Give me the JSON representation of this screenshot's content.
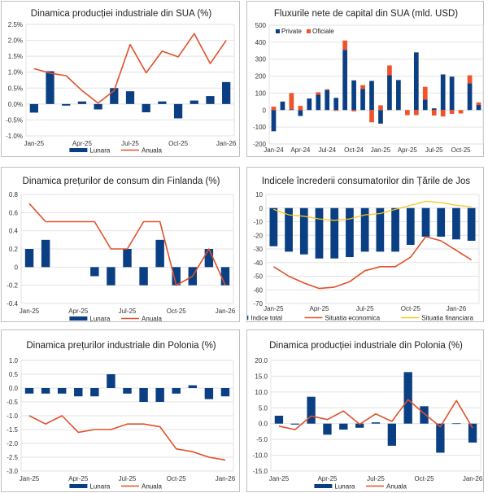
{
  "colors": {
    "blue": "#0b3f84",
    "orange": "#f0532a",
    "red_line": "#e0502b",
    "yellow": "#f5c518",
    "axis_text": "#333333"
  },
  "chart_data": [
    {
      "id": "us-industrial",
      "type": "bar+line",
      "title": "Dinamica producției industriale din SUA (%)",
      "xlabel": "",
      "ylabel": "",
      "ylim": [
        -1.0,
        2.5
      ],
      "yticks": [
        "2.5%",
        "2.0%",
        "1.5%",
        "1.0%",
        "0.5%",
        "0.0%",
        "-0.5%",
        "-1.0%"
      ],
      "ytick_values": [
        2.5,
        2.0,
        1.5,
        1.0,
        0.5,
        0.0,
        -0.5,
        -1.0
      ],
      "categories": [
        "Jan-25",
        "Feb-25",
        "Mar-25",
        "Apr-25",
        "May-25",
        "Jun-25",
        "Jul-25",
        "Aug-25",
        "Sep-25",
        "Oct-25",
        "Nov-25",
        "Dec-25",
        "Jan-26"
      ],
      "xtick_labels": [
        {
          "i": 0,
          "label": "Jan-25"
        },
        {
          "i": 3,
          "label": "Apr-25"
        },
        {
          "i": 6,
          "label": "Jul-25"
        },
        {
          "i": 9,
          "label": "Oct-25"
        },
        {
          "i": 12,
          "label": "Jan-26"
        }
      ],
      "grid": true,
      "legend": "bottom",
      "series": [
        {
          "name": "Lunara",
          "kind": "bar",
          "color": "#0b3f84",
          "values": [
            -0.27,
            1.03,
            -0.05,
            0.08,
            -0.17,
            0.5,
            0.4,
            -0.26,
            0.08,
            -0.45,
            0.11,
            0.25,
            0.69
          ]
        },
        {
          "name": "Anuala",
          "kind": "line",
          "color": "#e0502b",
          "values": [
            1.11,
            0.97,
            0.89,
            0.42,
            0.03,
            0.42,
            1.87,
            0.98,
            1.66,
            1.48,
            2.21,
            1.27,
            2.0
          ]
        }
      ]
    },
    {
      "id": "us-capital-flows",
      "type": "stacked-bar",
      "title": "Fluxurile nete de capital din SUA (mld. USD)",
      "xlabel": "",
      "ylabel": "",
      "ylim": [
        -200,
        500
      ],
      "yticks": [
        "500",
        "400",
        "300",
        "200",
        "100",
        "0",
        "-100",
        "-200"
      ],
      "ytick_values": [
        500,
        400,
        300,
        200,
        100,
        0,
        -100,
        -200
      ],
      "categories": [
        "Jan-24",
        "Feb-24",
        "Mar-24",
        "Apr-24",
        "May-24",
        "Jun-24",
        "Jul-24",
        "Aug-24",
        "Sep-24",
        "Oct-24",
        "Nov-24",
        "Dec-24",
        "Jan-25",
        "Feb-25",
        "Mar-25",
        "Apr-25",
        "May-25",
        "Jun-25",
        "Jul-25",
        "Aug-25",
        "Sep-25",
        "Oct-25",
        "Nov-25",
        "Dec-25"
      ],
      "xtick_labels": [
        {
          "i": 0,
          "label": "Jan-24"
        },
        {
          "i": 3,
          "label": "Apr-24"
        },
        {
          "i": 6,
          "label": "Jul-24"
        },
        {
          "i": 9,
          "label": "Oct-24"
        },
        {
          "i": 12,
          "label": "Jan-25"
        },
        {
          "i": 15,
          "label": "Apr-25"
        },
        {
          "i": 18,
          "label": "Jul-25"
        },
        {
          "i": 21,
          "label": "Oct-25"
        }
      ],
      "grid": true,
      "legend": "top-left",
      "series": [
        {
          "name": "Private",
          "color": "#0b3f84",
          "values": [
            -125,
            50,
            5,
            -35,
            68,
            90,
            118,
            72,
            355,
            175,
            125,
            172,
            -80,
            205,
            177,
            0,
            340,
            62,
            10,
            210,
            197,
            0,
            157,
            30
          ]
        },
        {
          "name": "Oficiale",
          "color": "#f0532a",
          "values": [
            20,
            0,
            95,
            25,
            0,
            15,
            5,
            -5,
            55,
            -8,
            22,
            -72,
            28,
            58,
            0,
            -30,
            -30,
            75,
            -32,
            -38,
            -22,
            -20,
            48,
            15
          ]
        }
      ]
    },
    {
      "id": "finland-cpi",
      "type": "bar+line",
      "title": "Dinamica prețurilor de consum din Finlanda (%)",
      "xlabel": "",
      "ylabel": "",
      "ylim": [
        -0.4,
        0.8
      ],
      "yticks": [
        "0.8",
        "0.6",
        "0.4",
        "0.2",
        "0",
        "-0.2",
        "-0.4"
      ],
      "ytick_values": [
        0.8,
        0.6,
        0.4,
        0.2,
        0,
        -0.2,
        -0.4
      ],
      "categories": [
        "Jan-25",
        "Feb-25",
        "Mar-25",
        "Apr-25",
        "May-25",
        "Jun-25",
        "Jul-25",
        "Aug-25",
        "Sep-25",
        "Oct-25",
        "Nov-25",
        "Dec-25",
        "Jan-26"
      ],
      "xtick_labels": [
        {
          "i": 0,
          "label": "Jan-25"
        },
        {
          "i": 3,
          "label": "Apr-25"
        },
        {
          "i": 6,
          "label": "Jul-25"
        },
        {
          "i": 9,
          "label": "Oct-25"
        },
        {
          "i": 12,
          "label": "Jan-26"
        }
      ],
      "grid": true,
      "legend": "bottom",
      "series": [
        {
          "name": "Lunara",
          "kind": "bar",
          "color": "#0b3f84",
          "values": [
            0.2,
            0.3,
            0.0,
            0.0,
            -0.1,
            -0.2,
            0.2,
            -0.2,
            0.3,
            -0.2,
            -0.2,
            0.2,
            -0.2
          ]
        },
        {
          "name": "Anuala",
          "kind": "line",
          "color": "#e0502b",
          "values": [
            0.7,
            0.5,
            0.5,
            0.5,
            0.5,
            0.2,
            0.2,
            0.5,
            0.5,
            -0.2,
            -0.1,
            0.2,
            -0.2
          ]
        }
      ]
    },
    {
      "id": "nl-consumer-confidence",
      "type": "bar+line",
      "title": "Indicele încrederii consumatorilor din Țările de Jos",
      "xlabel": "",
      "ylabel": "",
      "ylim": [
        -70,
        10
      ],
      "yticks": [
        "10",
        "0",
        "-10",
        "-20",
        "-30",
        "-40",
        "-50",
        "-60",
        "-70"
      ],
      "ytick_values": [
        10,
        0,
        -10,
        -20,
        -30,
        -40,
        -50,
        -60,
        -70
      ],
      "categories": [
        "Jan-25",
        "Feb-25",
        "Mar-25",
        "Apr-25",
        "May-25",
        "Jun-25",
        "Jul-25",
        "Aug-25",
        "Sep-25",
        "Oct-25",
        "Nov-25",
        "Dec-25",
        "Jan-26",
        "Feb-26"
      ],
      "xtick_labels": [
        {
          "i": 0,
          "label": "Jan-25"
        },
        {
          "i": 3,
          "label": "Apr-25"
        },
        {
          "i": 6,
          "label": "Jul-25"
        },
        {
          "i": 9,
          "label": "Oct-25"
        },
        {
          "i": 12,
          "label": "Jan-26"
        }
      ],
      "grid": true,
      "legend": "bottom",
      "series": [
        {
          "name": "Indice total",
          "kind": "bar",
          "color": "#0b3f84",
          "values": [
            -28,
            -32,
            -34,
            -37,
            -37,
            -36,
            -32,
            -32,
            -32,
            -27,
            -21,
            -21,
            -23,
            -24
          ]
        },
        {
          "name": "Situatia economica",
          "kind": "line",
          "color": "#e0502b",
          "values": [
            -43,
            -50,
            -55,
            -59,
            -58,
            -54,
            -46,
            -43,
            -43,
            -36,
            -21,
            -24,
            -31,
            -38
          ]
        },
        {
          "name": "Situatia financiara",
          "kind": "line",
          "color": "#f5c518",
          "values": [
            -1,
            -5,
            -6,
            -8,
            -9,
            -8,
            -5,
            -4,
            -1,
            2,
            5,
            4,
            2,
            1
          ]
        }
      ]
    },
    {
      "id": "poland-ppi",
      "type": "bar+line",
      "title": "Dinamica prețurilor industriale din Polonia (%)",
      "xlabel": "",
      "ylabel": "",
      "ylim": [
        -3.0,
        1.0
      ],
      "yticks": [
        "1.0",
        "0.5",
        "0.0",
        "-0.5",
        "-1.0",
        "-1.5",
        "-2.0",
        "-2.5",
        "-3.0"
      ],
      "ytick_values": [
        1.0,
        0.5,
        0.0,
        -0.5,
        -1.0,
        -1.5,
        -2.0,
        -2.5,
        -3.0
      ],
      "categories": [
        "Jan-25",
        "Feb-25",
        "Mar-25",
        "Apr-25",
        "May-25",
        "Jun-25",
        "Jul-25",
        "Aug-25",
        "Sep-25",
        "Oct-25",
        "Nov-25",
        "Dec-25",
        "Jan-26"
      ],
      "xtick_labels": [
        {
          "i": 0,
          "label": "Jan-25"
        },
        {
          "i": 3,
          "label": "Apr-25"
        },
        {
          "i": 6,
          "label": "Jul-25"
        },
        {
          "i": 9,
          "label": "Oct-25"
        },
        {
          "i": 12,
          "label": "Jan-26"
        }
      ],
      "grid": true,
      "legend": "bottom",
      "series": [
        {
          "name": "Lunara",
          "kind": "bar",
          "color": "#0b3f84",
          "values": [
            -0.2,
            -0.2,
            -0.2,
            -0.3,
            -0.3,
            0.5,
            -0.2,
            -0.5,
            -0.5,
            -0.2,
            0.1,
            -0.4,
            -0.3
          ]
        },
        {
          "name": "Anuala",
          "kind": "line",
          "color": "#e0502b",
          "values": [
            -1.0,
            -1.3,
            -1.0,
            -1.6,
            -1.5,
            -1.5,
            -1.3,
            -1.3,
            -1.4,
            -2.2,
            -2.3,
            -2.5,
            -2.6
          ]
        }
      ]
    },
    {
      "id": "poland-industrial",
      "type": "bar+line",
      "title": "Dinamica producției industriale din Polonia (%)",
      "xlabel": "",
      "ylabel": "",
      "ylim": [
        -15.0,
        20.0
      ],
      "yticks": [
        "20.0",
        "15.0",
        "10.0",
        "5.0",
        "0.0",
        "-5.0",
        "-10.0",
        "-15.0"
      ],
      "ytick_values": [
        20,
        15,
        10,
        5,
        0,
        -5,
        -10,
        -15
      ],
      "categories": [
        "Jan-25",
        "Feb-25",
        "Mar-25",
        "Apr-25",
        "May-25",
        "Jun-25",
        "Jul-25",
        "Aug-25",
        "Sep-25",
        "Oct-25",
        "Nov-25",
        "Dec-25",
        "Jan-26"
      ],
      "xtick_labels": [
        {
          "i": 0,
          "label": "Jan-25"
        },
        {
          "i": 3,
          "label": "Apr-25"
        },
        {
          "i": 6,
          "label": "Jul-25"
        },
        {
          "i": 9,
          "label": "Oct-25"
        },
        {
          "i": 12,
          "label": "Jan-26"
        }
      ],
      "grid": true,
      "legend": "bottom",
      "series": [
        {
          "name": "Lunara",
          "kind": "bar",
          "color": "#0b3f84",
          "values": [
            2.5,
            -0.3,
            8.5,
            -3.5,
            -1.9,
            -1.3,
            0.4,
            -7.0,
            16.3,
            5.5,
            -9.2,
            0.1,
            -6.0
          ]
        },
        {
          "name": "Anuala",
          "kind": "line",
          "color": "#e0502b",
          "values": [
            -0.8,
            -1.9,
            2.4,
            1.3,
            4.0,
            -0.2,
            3.1,
            0.7,
            7.6,
            3.2,
            -1.0,
            7.3,
            -1.4
          ]
        }
      ]
    }
  ]
}
